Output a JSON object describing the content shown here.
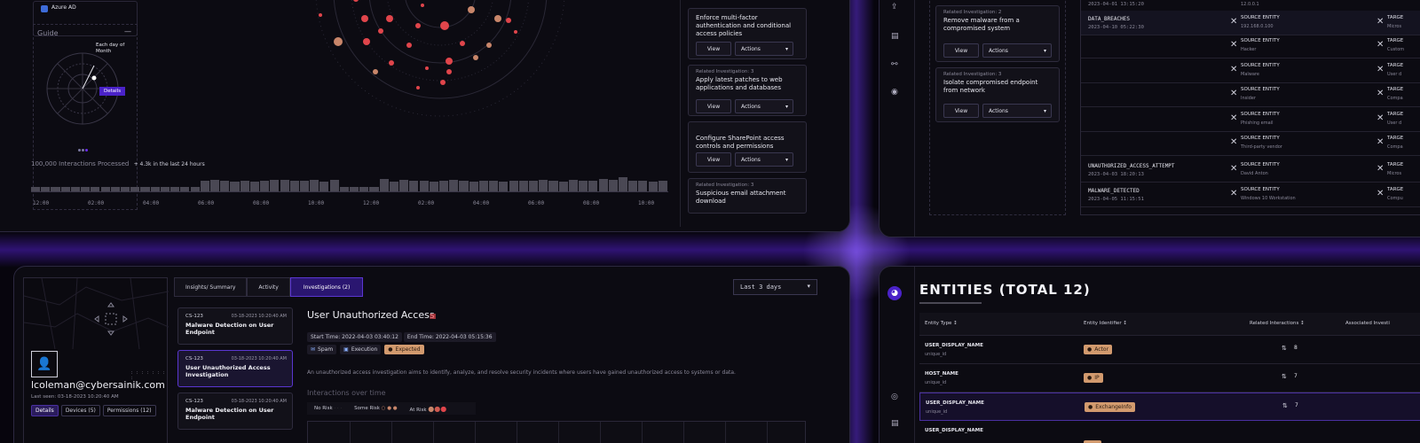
{
  "top_left": {
    "identity_provider": "Azure AD",
    "guide": {
      "title": "Guide",
      "minimize": "—",
      "callout": "Each day of Month",
      "details_label": "Details"
    },
    "interactions": {
      "processed": "100,000 Interactions Processed",
      "delta": "+ 4.3k in the last 24 hours",
      "bar_levels": [
        0.2,
        0.2,
        0.2,
        0.2,
        0.2,
        0.2,
        0.2,
        0.2,
        0.2,
        0.2,
        0.2,
        0.2,
        0.2,
        0.2,
        0.2,
        0.2,
        0.2,
        0.5,
        0.55,
        0.5,
        0.45,
        0.5,
        0.45,
        0.5,
        0.55,
        0.55,
        0.5,
        0.5,
        0.55,
        0.45,
        0.55,
        0.2,
        0.2,
        0.2,
        0.2,
        0.6,
        0.45,
        0.55,
        0.5,
        0.5,
        0.45,
        0.5,
        0.55,
        0.5,
        0.45,
        0.5,
        0.5,
        0.45,
        0.5,
        0.5,
        0.5,
        0.55,
        0.5,
        0.45,
        0.55,
        0.5,
        0.5,
        0.6,
        0.55,
        0.65,
        0.5,
        0.5,
        0.45,
        0.5
      ],
      "time_ticks": [
        "12:00",
        "02:00",
        "04:00",
        "06:00",
        "08:00",
        "10:00",
        "12:00",
        "02:00",
        "04:00",
        "06:00",
        "08:00",
        "10:00"
      ]
    },
    "recommendations": [
      {
        "related": "",
        "title": "Enforce multi-factor authentication and conditional access policies",
        "view": "View",
        "actions": "Actions"
      },
      {
        "related": "Related Investigation: 3",
        "title": "Apply latest patches to web applications and databases",
        "view": "View",
        "actions": "Actions"
      },
      {
        "related": "",
        "title": "Configure SharePoint access controls and permissions",
        "view": "View",
        "actions": "Actions"
      },
      {
        "related": "Related Investigation: 3",
        "title": "Suspicious email attachment download",
        "view": "",
        "actions": ""
      }
    ],
    "colors": {
      "dot_red": "#e0454b",
      "dot_tan": "#c8866a",
      "accent_purple": "#6a2cf0"
    }
  },
  "top_right": {
    "investigations": [
      {
        "related": "Related Investigation: 2",
        "title": "Remove malware from a compromised system",
        "view": "View",
        "actions": "Actions"
      },
      {
        "related": "Related Investigation: 3",
        "title": "Isolate compromised endpoint from network",
        "view": "View",
        "actions": "Actions"
      }
    ],
    "events": [
      {
        "type": "",
        "time": "2023-04-01 13:15:20",
        "source_label": "",
        "source_value": "12.0.0.1"
      },
      {
        "type": "DATA_BREACHES",
        "time": "2023-04-10 05:22:30",
        "source_label": "SOURCE ENTITY",
        "source_value": "192.168.0.100"
      },
      {
        "type": "",
        "time": "",
        "source_label": "SOURCE ENTITY",
        "source_value": "Hacker"
      },
      {
        "type": "",
        "time": "",
        "source_label": "SOURCE ENTITY",
        "source_value": "Malware"
      },
      {
        "type": "",
        "time": "",
        "source_label": "SOURCE ENTITY",
        "source_value": "Insider"
      },
      {
        "type": "",
        "time": "",
        "source_label": "SOURCE ENTITY",
        "source_value": "Phishing email"
      },
      {
        "type": "",
        "time": "",
        "source_label": "SOURCE ENTITY",
        "source_value": "Third-party vendor"
      },
      {
        "type": "UNAUTHORIZED_ACCESS_ATTEMPT",
        "time": "2023-04-03 18:20:13",
        "source_label": "SOURCE ENTITY",
        "source_value": "David Anton"
      },
      {
        "type": "MALWARE_DETECTED",
        "time": "2023-04-05 11:15:51",
        "source_label": "SOURCE ENTITY",
        "source_value": "Windows 10 Workstation"
      }
    ],
    "targets": [
      "Micros",
      "Custom",
      "User d",
      "Compa",
      "User d",
      "Compa",
      "Micros",
      "Compu"
    ],
    "target_label": "TARGE"
  },
  "bottom_left": {
    "user_email": "lcoleman@cybersainik.com",
    "last_seen": "Last seen: 03-18-2023 10:20:40 AM",
    "profile_tabs": [
      "Details",
      "Devices (5)",
      "Permissions (12)"
    ],
    "tabs": [
      "Insights/ Summary",
      "Activity",
      "Investigations (2)"
    ],
    "range": "Last 3 days",
    "cases": [
      {
        "id": "CS-123",
        "date": "03-18-2023",
        "time": "10:20:40 AM",
        "title": "Malware Detection on User Endpoint"
      },
      {
        "id": "CS-123",
        "date": "03-18-2023",
        "time": "10:20:40 AM",
        "title": "User Unauthorized Access Investigation"
      },
      {
        "id": "CS-123",
        "date": "03-18-2023",
        "time": "10:20:40 AM",
        "title": "Malware Detection on User Endpoint"
      }
    ],
    "detail": {
      "title": "User Unauthorized Access",
      "start": "Start Time: 2022-04-03 03:40:12",
      "end": "End Time: 2022-04-03 05:15:36",
      "tags": [
        "Spam",
        "Execution",
        "Expected"
      ],
      "description": "An unauthorized access investigation aims to identify, analyze, and resolve security incidents where users have gained unauthorized access to systems or data.",
      "chart_title": "Interactions over time",
      "legend": [
        "No Risk",
        "Some Risk",
        "At Risk"
      ]
    }
  },
  "bottom_right": {
    "title": "ENTITIES (TOTAL 12)",
    "columns": [
      "Entity Type",
      "Entity Identifier",
      "Related Interactions",
      "Associated Investi"
    ],
    "rows": [
      {
        "type": "USER_DISPLAY_NAME",
        "sub": "unique_id",
        "identifier": "Actor",
        "count": "8"
      },
      {
        "type": "HOST_NAME",
        "sub": "unique_id",
        "identifier": "IP",
        "count": "7"
      },
      {
        "type": "USER_DISPLAY_NAME",
        "sub": "unique_id",
        "identifier": "ExchangeInfo",
        "count": "7"
      },
      {
        "type": "USER_DISPLAY_NAME",
        "sub": "",
        "identifier": "",
        "count": ""
      }
    ]
  }
}
